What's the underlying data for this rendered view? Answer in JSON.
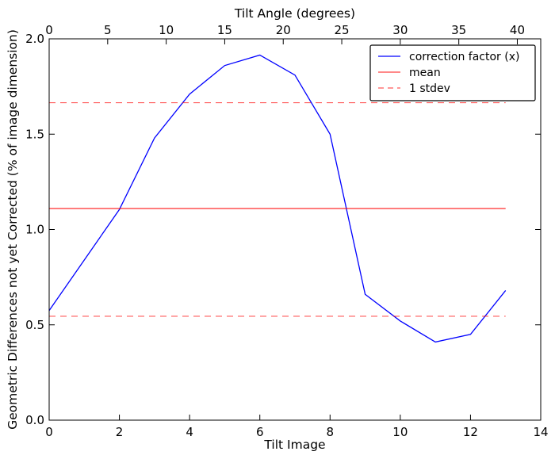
{
  "chart_data": {
    "type": "line",
    "title": "",
    "xlabel": "Tilt Image",
    "ylabel": "Geometric Differences not yet Corrected (% of image dimension)",
    "top_xlabel": "Tilt Angle (degrees)",
    "xlim": [
      0,
      14
    ],
    "ylim": [
      0,
      2.0
    ],
    "top_xlim": [
      0,
      42
    ],
    "x_ticks": [
      0,
      2,
      4,
      6,
      8,
      10,
      12,
      14
    ],
    "y_ticks": [
      0.0,
      0.5,
      1.0,
      1.5,
      2.0
    ],
    "top_x_ticks": [
      0,
      5,
      10,
      15,
      20,
      25,
      30,
      35,
      40
    ],
    "x_tick_labels": [
      "0",
      "2",
      "4",
      "6",
      "8",
      "10",
      "12",
      "14"
    ],
    "y_tick_labels": [
      "0.0",
      "0.5",
      "1.0",
      "1.5",
      "2.0"
    ],
    "top_x_tick_labels": [
      "0",
      "5",
      "10",
      "15",
      "20",
      "25",
      "30",
      "35",
      "40"
    ],
    "grid": false,
    "legend_position": "top-right",
    "series": [
      {
        "name": "correction factor (x)",
        "style": "solid",
        "color": "#0000ff",
        "x": [
          0,
          1,
          2,
          3,
          4,
          5,
          6,
          7,
          8,
          9,
          10,
          11,
          12,
          13
        ],
        "y": [
          0.575,
          0.84,
          1.105,
          1.48,
          1.71,
          1.86,
          1.915,
          1.81,
          1.5,
          0.66,
          0.52,
          0.41,
          0.45,
          0.68
        ]
      },
      {
        "name": "mean",
        "style": "solid",
        "color": "#ff0000",
        "x": [
          0,
          13
        ],
        "y": [
          1.11,
          1.11
        ]
      },
      {
        "name": "1 stdev",
        "style": "dashed",
        "color": "#ff0000",
        "x": [
          0,
          13
        ],
        "y": [
          1.665,
          1.665
        ]
      },
      {
        "name": "",
        "style": "dashed",
        "color": "#ff0000",
        "x": [
          0,
          13
        ],
        "y": [
          0.545,
          0.545
        ]
      }
    ]
  }
}
